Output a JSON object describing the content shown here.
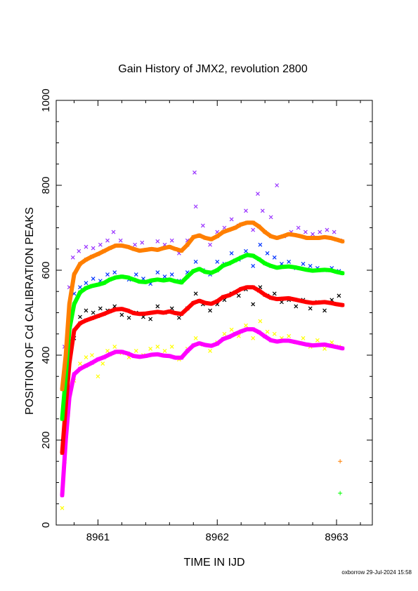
{
  "chart_data": {
    "type": "scatter",
    "title": "Gain History of JMX2, revolution 2800",
    "xlabel": "TIME IN IJD",
    "ylabel": "POSITION OF Cd CALIBRATION PEAKS",
    "xlim": [
      8960.65,
      8963.3
    ],
    "ylim": [
      0,
      1000
    ],
    "xticks": [
      8961,
      8962,
      8963
    ],
    "yticks": [
      0,
      200,
      400,
      600,
      800,
      1000
    ],
    "grid": false,
    "footer": "oxborrow 29-Jul-2024 15:58",
    "series": [
      {
        "color": "#ff7f00",
        "style": "thick-line",
        "x": [
          8960.7,
          8960.73,
          8960.76,
          8960.8,
          8960.85,
          8960.9,
          8960.95,
          8961.0,
          8961.05,
          8961.1,
          8961.15,
          8961.2,
          8961.25,
          8961.3,
          8961.35,
          8961.4,
          8961.45,
          8961.5,
          8961.55,
          8961.6,
          8961.65,
          8961.7,
          8961.75,
          8961.8,
          8961.85,
          8961.9,
          8961.95,
          8962.0,
          8962.05,
          8962.1,
          8962.15,
          8962.2,
          8962.25,
          8962.3,
          8962.35,
          8962.4,
          8962.45,
          8962.5,
          8962.55,
          8962.6,
          8962.65,
          8962.7,
          8962.75,
          8962.8,
          8962.85,
          8962.9,
          8962.95,
          8963.0,
          8963.05
        ],
        "y": [
          320,
          400,
          520,
          590,
          615,
          625,
          632,
          638,
          645,
          652,
          658,
          658,
          655,
          650,
          646,
          648,
          650,
          648,
          652,
          655,
          650,
          646,
          660,
          678,
          682,
          676,
          673,
          680,
          690,
          695,
          700,
          708,
          712,
          712,
          703,
          690,
          680,
          676,
          680,
          685,
          683,
          680,
          676,
          676,
          676,
          678,
          676,
          672,
          668
        ]
      },
      {
        "color": "#00ff00",
        "style": "thick-line",
        "x": [
          8960.7,
          8960.73,
          8960.76,
          8960.8,
          8960.85,
          8960.9,
          8960.95,
          8961.0,
          8961.05,
          8961.1,
          8961.15,
          8961.2,
          8961.25,
          8961.3,
          8961.35,
          8961.4,
          8961.45,
          8961.5,
          8961.55,
          8961.6,
          8961.65,
          8961.7,
          8961.75,
          8961.8,
          8961.85,
          8961.9,
          8961.95,
          8962.0,
          8962.05,
          8962.1,
          8962.15,
          8962.2,
          8962.25,
          8962.3,
          8962.35,
          8962.4,
          8962.45,
          8962.5,
          8962.55,
          8962.6,
          8962.65,
          8962.7,
          8962.75,
          8962.8,
          8962.85,
          8962.9,
          8962.95,
          8963.0,
          8963.05
        ],
        "y": [
          250,
          350,
          460,
          520,
          548,
          558,
          563,
          566,
          570,
          578,
          583,
          585,
          583,
          578,
          573,
          572,
          576,
          578,
          576,
          578,
          574,
          571,
          585,
          598,
          603,
          596,
          594,
          600,
          611,
          616,
          623,
          630,
          636,
          634,
          626,
          616,
          610,
          606,
          608,
          609,
          607,
          604,
          601,
          599,
          600,
          601,
          600,
          596,
          593
        ]
      },
      {
        "color": "#ff0000",
        "style": "thick-line",
        "x": [
          8960.7,
          8960.73,
          8960.76,
          8960.8,
          8960.85,
          8960.9,
          8960.95,
          8961.0,
          8961.05,
          8961.1,
          8961.15,
          8961.2,
          8961.25,
          8961.3,
          8961.35,
          8961.4,
          8961.45,
          8961.5,
          8961.55,
          8961.6,
          8961.65,
          8961.7,
          8961.75,
          8961.8,
          8961.85,
          8961.9,
          8961.95,
          8962.0,
          8962.05,
          8962.1,
          8962.15,
          8962.2,
          8962.25,
          8962.3,
          8962.35,
          8962.4,
          8962.45,
          8962.5,
          8962.55,
          8962.6,
          8962.65,
          8962.7,
          8962.75,
          8962.8,
          8962.85,
          8962.9,
          8962.95,
          8963.0,
          8963.05
        ],
        "y": [
          170,
          280,
          380,
          458,
          475,
          482,
          487,
          492,
          497,
          503,
          508,
          509,
          505,
          499,
          497,
          498,
          500,
          502,
          500,
          503,
          499,
          497,
          510,
          523,
          528,
          523,
          521,
          527,
          537,
          541,
          548,
          556,
          560,
          560,
          552,
          542,
          535,
          532,
          533,
          534,
          531,
          528,
          525,
          523,
          524,
          525,
          523,
          520,
          518
        ]
      },
      {
        "color": "#ff00ff",
        "style": "thick-line",
        "x": [
          8960.7,
          8960.73,
          8960.76,
          8960.8,
          8960.85,
          8960.9,
          8960.95,
          8961.0,
          8961.05,
          8961.1,
          8961.15,
          8961.2,
          8961.25,
          8961.3,
          8961.35,
          8961.4,
          8961.45,
          8961.5,
          8961.55,
          8961.6,
          8961.65,
          8961.7,
          8961.75,
          8961.8,
          8961.85,
          8961.9,
          8961.95,
          8962.0,
          8962.05,
          8962.1,
          8962.15,
          8962.2,
          8962.25,
          8962.3,
          8962.35,
          8962.4,
          8962.45,
          8962.5,
          8962.55,
          8962.6,
          8962.65,
          8962.7,
          8962.75,
          8962.8,
          8962.85,
          8962.9,
          8962.95,
          8963.0,
          8963.05
        ],
        "y": [
          70,
          200,
          300,
          355,
          368,
          375,
          382,
          390,
          395,
          402,
          408,
          408,
          404,
          398,
          396,
          398,
          401,
          402,
          399,
          398,
          394,
          394,
          410,
          423,
          428,
          424,
          422,
          427,
          438,
          443,
          450,
          456,
          461,
          461,
          454,
          444,
          435,
          432,
          434,
          434,
          431,
          428,
          425,
          423,
          424,
          425,
          422,
          419,
          416
        ]
      },
      {
        "color": "#9933ff",
        "style": "x-marks",
        "x": [
          8960.72,
          8960.76,
          8960.79,
          8960.84,
          8960.9,
          8960.96,
          8961.02,
          8961.08,
          8961.13,
          8961.19,
          8961.25,
          8961.31,
          8961.37,
          8961.44,
          8961.5,
          8961.56,
          8961.62,
          8961.68,
          8961.75,
          8961.81,
          8961.82,
          8961.88,
          8961.94,
          8962.0,
          8962.06,
          8962.12,
          8962.18,
          8962.24,
          8962.3,
          8962.34,
          8962.38,
          8962.45,
          8962.5,
          8962.56,
          8962.62,
          8962.68,
          8962.74,
          8962.8,
          8962.86,
          8962.92,
          8962.98,
          8963.03
        ],
        "y": [
          420,
          560,
          630,
          645,
          655,
          652,
          660,
          670,
          690,
          670,
          655,
          660,
          665,
          650,
          668,
          660,
          670,
          640,
          670,
          830,
          750,
          705,
          660,
          690,
          700,
          720,
          705,
          740,
          695,
          780,
          740,
          725,
          800,
          680,
          690,
          700,
          690,
          685,
          690,
          695,
          690,
          670
        ]
      },
      {
        "color": "#0033ff",
        "style": "x-marks",
        "x": [
          8960.72,
          8960.76,
          8960.8,
          8960.85,
          8960.9,
          8960.96,
          8961.02,
          8961.08,
          8961.14,
          8961.2,
          8961.26,
          8961.32,
          8961.38,
          8961.44,
          8961.5,
          8961.56,
          8961.62,
          8961.68,
          8961.75,
          8961.82,
          8961.88,
          8961.94,
          8962.0,
          8962.06,
          8962.12,
          8962.18,
          8962.24,
          8962.3,
          8962.36,
          8962.42,
          8962.48,
          8962.54,
          8962.6,
          8962.66,
          8962.72,
          8962.78,
          8962.84,
          8962.9,
          8962.96,
          8963.02
        ],
        "y": [
          350,
          480,
          545,
          560,
          570,
          580,
          575,
          590,
          595,
          585,
          578,
          590,
          580,
          568,
          595,
          585,
          590,
          575,
          595,
          620,
          600,
          590,
          620,
          615,
          640,
          625,
          645,
          610,
          660,
          640,
          630,
          615,
          620,
          605,
          615,
          610,
          605,
          600,
          605,
          598
        ]
      },
      {
        "color": "#000000",
        "style": "x-marks",
        "x": [
          8960.72,
          8960.76,
          8960.8,
          8960.85,
          8960.9,
          8960.96,
          8961.02,
          8961.08,
          8961.14,
          8961.2,
          8961.26,
          8961.32,
          8961.38,
          8961.44,
          8961.5,
          8961.56,
          8961.62,
          8961.68,
          8961.75,
          8961.82,
          8961.88,
          8961.94,
          8962.0,
          8962.06,
          8962.12,
          8962.18,
          8962.24,
          8962.3,
          8962.36,
          8962.42,
          8962.48,
          8962.54,
          8962.6,
          8962.66,
          8962.72,
          8962.78,
          8962.84,
          8962.9,
          8962.96,
          8963.02
        ],
        "y": [
          150,
          300,
          440,
          490,
          505,
          500,
          510,
          505,
          515,
          495,
          488,
          500,
          490,
          485,
          515,
          500,
          510,
          488,
          510,
          545,
          520,
          505,
          520,
          530,
          545,
          540,
          555,
          520,
          560,
          540,
          545,
          525,
          530,
          515,
          530,
          510,
          525,
          505,
          530,
          540
        ]
      },
      {
        "color": "#ffff00",
        "style": "x-marks",
        "x": [
          8960.7,
          8960.75,
          8960.8,
          8960.85,
          8960.9,
          8960.95,
          8961.0,
          8961.04,
          8961.08,
          8961.14,
          8961.2,
          8961.26,
          8961.32,
          8961.38,
          8961.44,
          8961.5,
          8961.56,
          8961.62,
          8961.68,
          8961.75,
          8961.82,
          8961.88,
          8961.94,
          8962.0,
          8962.06,
          8962.12,
          8962.18,
          8962.24,
          8962.3,
          8962.36,
          8962.42,
          8962.48,
          8962.54,
          8962.6,
          8962.66,
          8962.72,
          8962.78,
          8962.84,
          8962.9,
          8962.96,
          8963.02
        ],
        "y": [
          40,
          260,
          340,
          380,
          395,
          400,
          350,
          380,
          410,
          420,
          405,
          395,
          410,
          400,
          415,
          420,
          410,
          420,
          390,
          415,
          440,
          425,
          410,
          430,
          450,
          460,
          445,
          470,
          440,
          480,
          455,
          450,
          440,
          445,
          430,
          440,
          420,
          435,
          415,
          430,
          420
        ]
      },
      {
        "color": "#ff7f00",
        "style": "plus-marks",
        "x": [
          8963.03
        ],
        "y": [
          150
        ]
      },
      {
        "color": "#00ff00",
        "style": "plus-marks",
        "x": [
          8963.03
        ],
        "y": [
          75
        ]
      }
    ]
  }
}
